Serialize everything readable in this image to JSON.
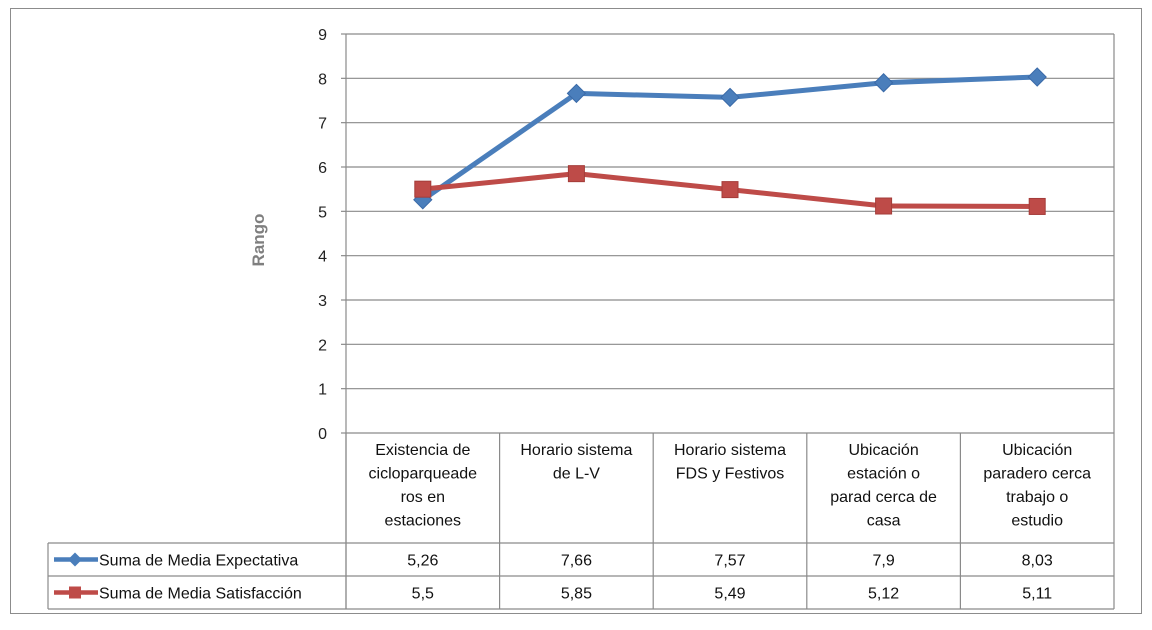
{
  "chart_data": {
    "type": "line",
    "ylabel": "Rango",
    "xlabel": "",
    "ylim": [
      0,
      9
    ],
    "yticks": [
      0,
      1,
      2,
      3,
      4,
      5,
      6,
      7,
      8,
      9
    ],
    "grid": true,
    "legend": "data-table",
    "categories": [
      [
        "Existencia de",
        "cicloparqueade",
        "ros en",
        "estaciones"
      ],
      [
        "Horario sistema",
        "de L-V"
      ],
      [
        "Horario sistema",
        "FDS y Festivos"
      ],
      [
        "Ubicación",
        "estación o",
        "parad cerca de",
        "casa"
      ],
      [
        "Ubicación",
        "paradero cerca",
        "trabajo o",
        "estudio"
      ]
    ],
    "series": [
      {
        "name": "Suma de Media Expectativa",
        "color": "#4a7ebb",
        "marker": "diamond",
        "values": [
          5.26,
          7.66,
          7.57,
          7.9,
          8.03
        ],
        "labels": [
          "5,26",
          "7,66",
          "7,57",
          "7,9",
          "8,03"
        ]
      },
      {
        "name": "Suma de Media Satisfacción",
        "color": "#be4b48",
        "marker": "square",
        "values": [
          5.5,
          5.85,
          5.49,
          5.12,
          5.11
        ],
        "labels": [
          "5,5",
          "5,85",
          "5,49",
          "5,12",
          "5,11"
        ]
      }
    ]
  }
}
